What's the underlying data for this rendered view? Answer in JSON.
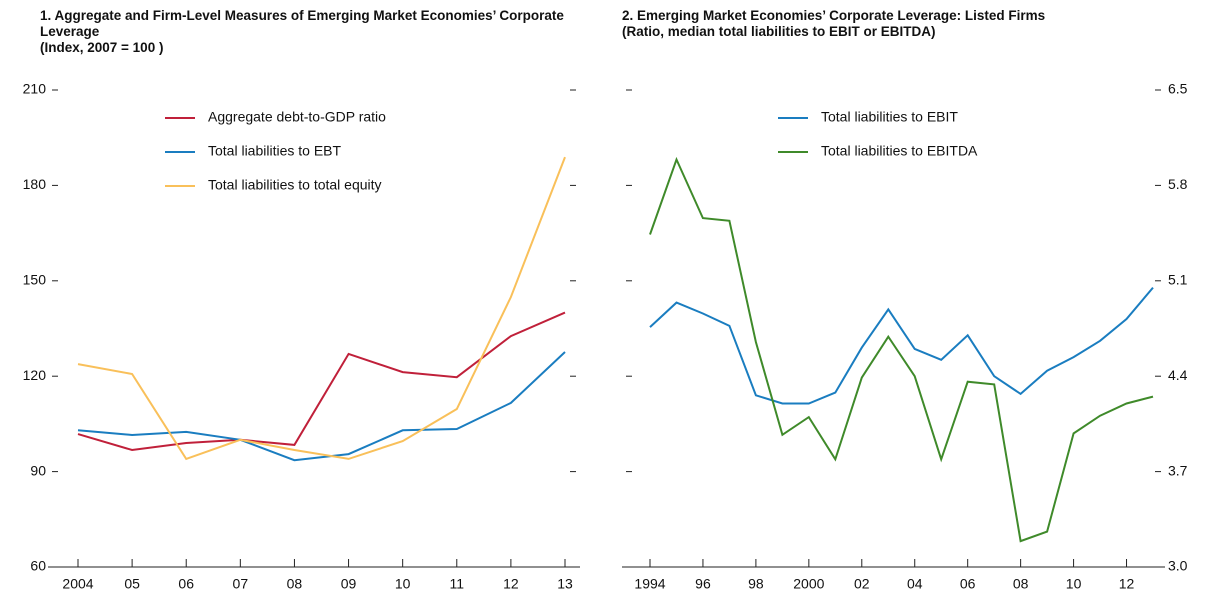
{
  "chart_data": [
    {
      "type": "line",
      "title": "1. Aggregate and Firm-Level Measures of Emerging Market Economies’ Corporate Leverage",
      "subtitle": "(Index, 2007 = 100 )",
      "categories": [
        "2004",
        "05",
        "06",
        "07",
        "08",
        "09",
        "10",
        "11",
        "12",
        "13"
      ],
      "series": [
        {
          "name": "Aggregate debt-to-GDP ratio",
          "color": "#c0203a",
          "values": [
            101.8,
            96.8,
            99,
            100,
            98.4,
            127,
            121.3,
            119.7,
            132.6,
            140
          ]
        },
        {
          "name": "Total liabilities to EBT",
          "color": "#1a7dc0",
          "values": [
            103,
            101.5,
            102.5,
            100,
            93.6,
            95.5,
            103,
            103.4,
            111.6,
            127.6
          ]
        },
        {
          "name": "Total liabilities to total equity",
          "color": "#f9c05a",
          "values": [
            123.8,
            120.7,
            94,
            100,
            96.8,
            94,
            99.6,
            109.7,
            144.9,
            188.9
          ]
        }
      ],
      "ylim": [
        60,
        210
      ],
      "yticks": [
        60,
        90,
        120,
        150,
        180,
        210
      ]
    },
    {
      "type": "line",
      "title": "2. Emerging Market Economies’ Corporate Leverage: Listed Firms",
      "subtitle": "(Ratio, median total liabilities to EBIT or EBITDA)",
      "categories": [
        "1994",
        null,
        "96",
        null,
        "98",
        null,
        "2000",
        null,
        "02",
        null,
        "04",
        null,
        "06",
        null,
        "08",
        null,
        "10",
        null,
        "12",
        null
      ],
      "series": [
        {
          "name": "Total liabilities to EBIT",
          "color": "#1a7dc0",
          "values": [
            4.76,
            4.94,
            4.86,
            4.77,
            4.26,
            4.2,
            4.2,
            4.28,
            4.61,
            4.89,
            4.6,
            4.52,
            4.7,
            4.4,
            4.27,
            4.44,
            4.54,
            4.66,
            4.82,
            5.05
          ]
        },
        {
          "name": "Total liabilities to EBITDA",
          "color": "#3f8a2a",
          "values": [
            5.44,
            5.99,
            5.56,
            5.54,
            4.65,
            3.97,
            4.1,
            3.79,
            4.39,
            4.69,
            4.4,
            3.79,
            4.36,
            4.34,
            3.19,
            3.26,
            3.98,
            4.11,
            4.2,
            4.25
          ]
        }
      ],
      "ylim": [
        3,
        6.5
      ],
      "yticks": [
        {
          "value": 3,
          "label": "3.0"
        },
        3.7,
        4.4,
        5.1,
        5.8,
        6.5
      ]
    }
  ]
}
